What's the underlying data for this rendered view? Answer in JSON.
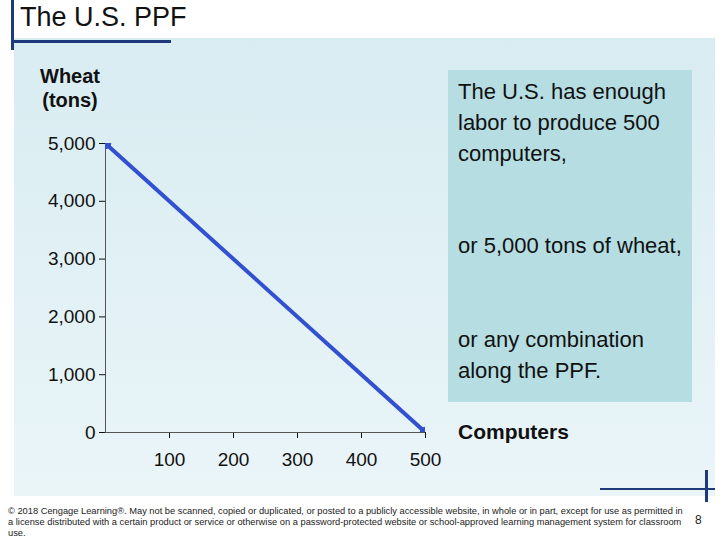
{
  "chart_data": {
    "type": "line",
    "title": "The U.S. PPF",
    "y_label": "Wheat\n(tons)",
    "x_label": "Computers",
    "x": [
      0,
      500
    ],
    "values": [
      5000,
      0
    ],
    "color": "#3250d2",
    "marker": "circle",
    "xlim": [
      0,
      500
    ],
    "ylim": [
      0,
      5000
    ],
    "xticks": [
      100,
      200,
      300,
      400,
      500
    ],
    "yticks": [
      0,
      {
        "value": 1000,
        "label": "1,000"
      },
      {
        "value": 2000,
        "label": "2,000"
      },
      {
        "value": 3000,
        "label": "3,000"
      },
      {
        "value": 4000,
        "label": "4,000"
      },
      {
        "value": 5000,
        "label": "5,000"
      }
    ],
    "grid": false,
    "annotations": [
      "The U.S. has enough labor to produce 500 computers,",
      "or 5,000 tons of wheat,",
      "or any combination along the PPF."
    ]
  },
  "footer": {
    "copyright": "© 2018 Cengage Learning®. May not be scanned, copied or duplicated, or posted to a publicly accessible website, in whole or in part, except for use as permitted in a license distributed with a certain product or service or otherwise on a password-protected website or school-approved learning management system for classroom use.",
    "page_number": 8
  }
}
